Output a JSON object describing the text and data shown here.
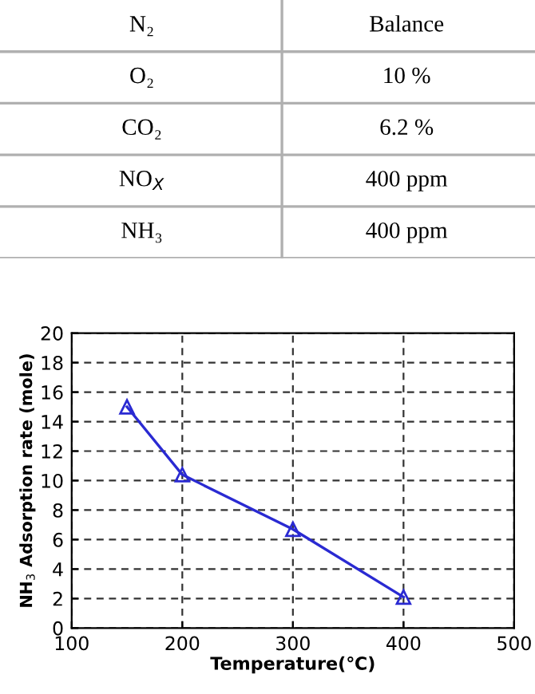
{
  "chart_data": [
    {
      "type": "other",
      "annotations": [
        "N₂",
        "Balance",
        "O₂",
        "10 %",
        "CO₂",
        "6.2 %",
        "NO$_{X}$",
        "400 ppm",
        "NH₃",
        "400 ppm"
      ]
    },
    {
      "type": "line",
      "xlabel": "Temperature(℃)",
      "ylabel": "NH$_{3}$ Adsorption rate (mole)",
      "x": [
        150,
        200,
        300,
        400
      ],
      "series": [
        {
          "color": "#2a2ad2",
          "values": [
            15.0,
            10.4,
            6.7,
            2.1
          ]
        }
      ],
      "xlim": [
        100,
        500
      ],
      "xticks": [
        100,
        200,
        300,
        400,
        500
      ],
      "ylim": [
        0,
        20
      ],
      "yticks": [
        0,
        2,
        4,
        6,
        8,
        10,
        12,
        14,
        16,
        18,
        20
      ],
      "grid": true,
      "marker": "triangle",
      "line_style": "solid",
      "legend": false
    }
  ]
}
